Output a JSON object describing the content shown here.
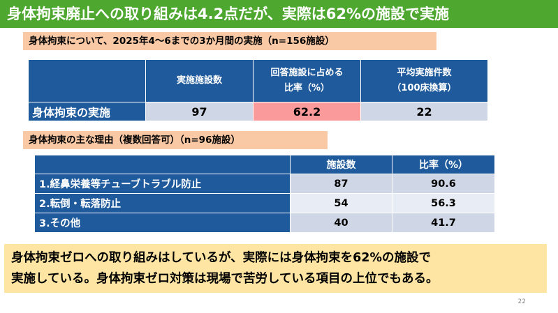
{
  "title": "身体拘束廃止への取り組みは4.2点だが、実際は62%の施設で実施",
  "section1": {
    "label": "身体拘束について、2025年4〜6までの3か月間の実施（n=156施設）",
    "headers": [
      "",
      "実施施設数",
      "回答施設に占める\n比率（%）",
      "平均実施件数\n（100床換算）"
    ],
    "header_lines": [
      {
        "line1": "実施施設数",
        "line2": ""
      },
      {
        "line1": "回答施設に占める",
        "line2": "比率（%）"
      },
      {
        "line1": "平均実施件数",
        "line2": "（100床換算）"
      }
    ],
    "row": {
      "label": "身体拘束の実施",
      "values": [
        "97",
        "62.2",
        "22"
      ]
    }
  },
  "section2": {
    "label": "身体拘束の主な理由（複数回答可）（n=96施設）",
    "headers": [
      "",
      "施設数",
      "比率（%）"
    ],
    "rows": [
      {
        "label": "1.経鼻栄養等チューブトラブル防止",
        "count": "87",
        "ratio": "90.6"
      },
      {
        "label": "2.転倒・転落防止",
        "count": "54",
        "ratio": "56.3"
      },
      {
        "label": "3.その他",
        "count": "40",
        "ratio": "41.7"
      }
    ]
  },
  "conclusion": {
    "line1": "身体拘束ゼロへの取り組みはしているが、実際には身体拘束を62%の施設で",
    "line2": "実施している。身体拘束ゼロ対策は現場で苦労している項目の上位でもある。"
  },
  "page_number": "22",
  "colors": {
    "title_bg": "#4ea72e",
    "label_bg": "#f9c8a4",
    "table_header": "#1f5b9c",
    "cell_light": "#cfd6e6",
    "cell_highlight": "#fa9a9a",
    "conclusion_bg": "#ffe5a3"
  }
}
